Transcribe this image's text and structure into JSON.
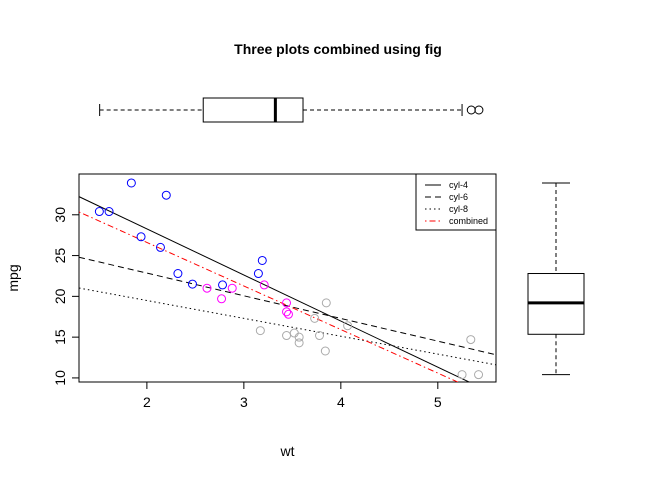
{
  "chart_data": {
    "title": "Three plots combined using fig",
    "scatter": {
      "type": "scatter",
      "xlabel": "wt",
      "ylabel": "mpg",
      "xlim": [
        1.3,
        5.6
      ],
      "ylim": [
        9.5,
        35
      ],
      "xticks": [
        "2",
        "3",
        "4",
        "5"
      ],
      "yticks": [
        "10",
        "15",
        "20",
        "25",
        "30"
      ],
      "series": [
        {
          "name": "cyl-4",
          "color": "#0000ff",
          "points": [
            [
              1.51,
              30.4
            ],
            [
              1.61,
              30.4
            ],
            [
              1.84,
              33.9
            ],
            [
              1.94,
              27.3
            ],
            [
              2.14,
              26.0
            ],
            [
              2.2,
              32.4
            ],
            [
              2.32,
              22.8
            ],
            [
              2.47,
              21.5
            ],
            [
              2.78,
              21.4
            ],
            [
              3.15,
              22.8
            ],
            [
              3.19,
              24.4
            ]
          ]
        },
        {
          "name": "cyl-6",
          "color": "#ff00ff",
          "points": [
            [
              2.62,
              21.0
            ],
            [
              2.77,
              19.7
            ],
            [
              2.88,
              21.0
            ],
            [
              3.21,
              21.4
            ],
            [
              3.44,
              18.1
            ],
            [
              3.44,
              19.2
            ],
            [
              3.46,
              17.8
            ]
          ]
        },
        {
          "name": "cyl-8",
          "color": "#aaaaaa",
          "points": [
            [
              3.17,
              15.8
            ],
            [
              3.44,
              15.2
            ],
            [
              3.52,
              15.5
            ],
            [
              3.57,
              15.0
            ],
            [
              3.57,
              14.3
            ],
            [
              3.73,
              17.3
            ],
            [
              3.78,
              15.2
            ],
            [
              3.84,
              13.3
            ],
            [
              3.85,
              19.2
            ],
            [
              4.07,
              16.4
            ],
            [
              5.25,
              10.4
            ],
            [
              5.34,
              14.7
            ],
            [
              5.42,
              10.4
            ]
          ]
        }
      ],
      "lines": [
        {
          "name": "cyl-4",
          "intercept": 39.57,
          "slope": -5.65,
          "color": "#000000",
          "dash": "solid"
        },
        {
          "name": "cyl-6",
          "intercept": 28.41,
          "slope": -2.78,
          "color": "#000000",
          "dash": "dashed"
        },
        {
          "name": "cyl-8",
          "intercept": 23.87,
          "slope": -2.19,
          "color": "#000000",
          "dash": "dotted"
        },
        {
          "name": "combined",
          "intercept": 37.29,
          "slope": -5.34,
          "color": "#ff0000",
          "dash": "dotdash"
        }
      ],
      "legend": {
        "position": "top-right",
        "entries": [
          "cyl-4",
          "cyl-6",
          "cyl-8",
          "combined"
        ]
      }
    },
    "boxplot_wt": {
      "type": "boxplot",
      "orientation": "horizontal",
      "whisker_low": 1.513,
      "q1": 2.581,
      "median": 3.325,
      "q3": 3.61,
      "whisker_high": 5.25,
      "outliers": [
        5.345,
        5.424
      ]
    },
    "boxplot_mpg": {
      "type": "boxplot",
      "orientation": "vertical",
      "whisker_low": 10.4,
      "q1": 15.35,
      "median": 19.2,
      "q3": 22.8,
      "whisker_high": 33.9,
      "outliers": []
    }
  }
}
